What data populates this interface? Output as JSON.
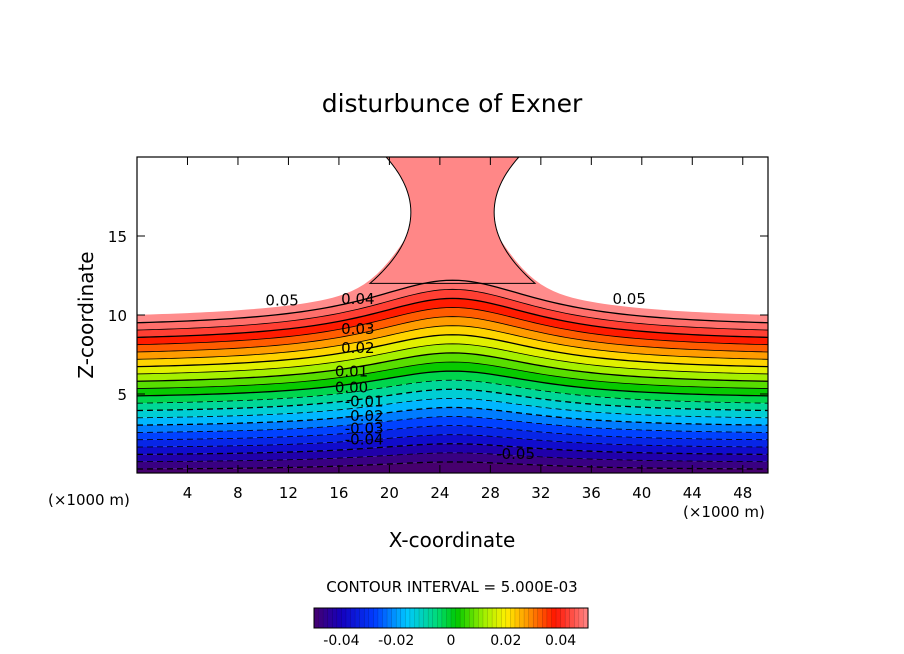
{
  "chart_data": {
    "type": "contour",
    "title": "disturbunce of Exner",
    "xlabel": "X-coordinate",
    "ylabel": "Z-coordinate",
    "x_unit_left": "(×1000 m)",
    "x_unit_right": "(×1000 m)",
    "xlim": [
      0,
      50
    ],
    "ylim": [
      0,
      20
    ],
    "x_ticks": [
      4,
      8,
      12,
      16,
      20,
      24,
      28,
      32,
      36,
      40,
      44,
      48
    ],
    "y_ticks": [
      5,
      10,
      15
    ],
    "contour_interval_text": "CONTOUR INTERVAL = 5.000E-03",
    "contour_labels": [
      {
        "text": "0.05",
        "x": 11.5,
        "z": 10.6
      },
      {
        "text": "0.04",
        "x": 17.5,
        "z": 10.7
      },
      {
        "text": "0.03",
        "x": 17.5,
        "z": 8.8
      },
      {
        "text": "0.02",
        "x": 17.5,
        "z": 7.6
      },
      {
        "text": "0.01",
        "x": 17.0,
        "z": 6.1
      },
      {
        "text": "0.00",
        "x": 17.0,
        "z": 5.1
      },
      {
        "text": "-0.01",
        "x": 18.0,
        "z": 4.2
      },
      {
        "text": "-0.02",
        "x": 18.0,
        "z": 3.3
      },
      {
        "text": "-0.03",
        "x": 18.0,
        "z": 2.5
      },
      {
        "text": "-0.04",
        "x": 18.0,
        "z": 1.8
      },
      {
        "text": "-0.05",
        "x": 30.0,
        "z": 0.9
      },
      {
        "text": "0.05",
        "x": 39.0,
        "z": 10.7
      }
    ],
    "colorbar": {
      "min": -0.05,
      "max": 0.05,
      "tick_labels": [
        "-0.04",
        "-0.02",
        "0",
        "0.02",
        "0.04"
      ],
      "tick_values": [
        -0.04,
        -0.02,
        0,
        0.02,
        0.04
      ]
    }
  }
}
